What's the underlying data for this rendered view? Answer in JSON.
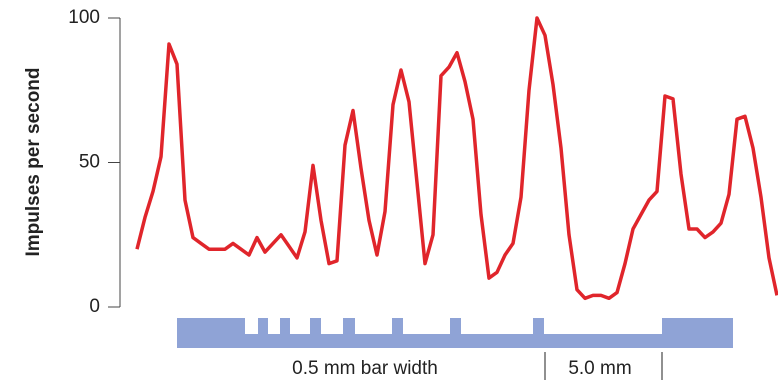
{
  "chart_data": {
    "type": "line",
    "ylabel": "Impulses per second",
    "ylim": [
      0,
      100
    ],
    "yticks": [
      0,
      50,
      100
    ],
    "series": [
      {
        "color": "#e0252b",
        "values": [
          20,
          31,
          40,
          52,
          91,
          84,
          37,
          24,
          22,
          20,
          20,
          20,
          22,
          20,
          18,
          24,
          19,
          22,
          25,
          21,
          17,
          26,
          49,
          30,
          15,
          16,
          56,
          68,
          48,
          30,
          18,
          33,
          70,
          82,
          71,
          43,
          15,
          25,
          80,
          83,
          88,
          78,
          65,
          32,
          10,
          12,
          18,
          22,
          38,
          75,
          100,
          94,
          77,
          55,
          25,
          6,
          3,
          4,
          4,
          3,
          5,
          15,
          27,
          32,
          37,
          40,
          73,
          72,
          46,
          27,
          27,
          24,
          26,
          29,
          39,
          65,
          66,
          55,
          38,
          17,
          4
        ]
      }
    ],
    "annotations": [
      "0.5 mm bar width",
      "5.0 mm"
    ]
  }
}
